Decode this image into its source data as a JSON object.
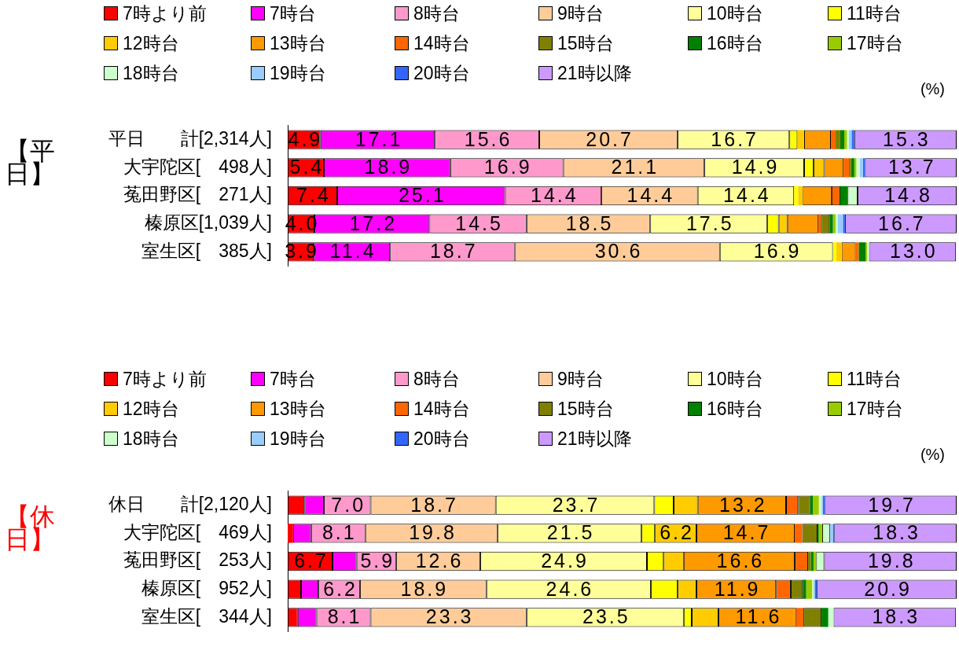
{
  "chart_data": [
    {
      "type": "bar",
      "title": "【平日】",
      "xlabel": "(%)",
      "orientation": "horizontal",
      "stacked": true,
      "legend": "top",
      "tick_labels": "y",
      "xlim": [
        0,
        100
      ],
      "categories": [
        "平日　　計[2,314人]",
        "大宇陀区[　498人]",
        "菟田野区[　271人]",
        "榛原区[1,039人]",
        "室生区[　385人]"
      ],
      "series": [
        {
          "name": "7時より前",
          "color": "#ff0000",
          "values": [
            4.9,
            5.4,
            7.4,
            4.0,
            3.9
          ],
          "value_labels": [
            "4.9",
            "5.4",
            "7.4",
            "4.0",
            "3.9"
          ]
        },
        {
          "name": "7時台",
          "color": "#ff00ff",
          "values": [
            17.1,
            18.9,
            25.1,
            17.2,
            11.4
          ],
          "value_labels": [
            "17.1",
            "18.9",
            "25.1",
            "17.2",
            "11.4"
          ]
        },
        {
          "name": "8時台",
          "color": "#ff99cc",
          "values": [
            15.6,
            16.9,
            14.4,
            14.5,
            18.7
          ],
          "value_labels": [
            "15.6",
            "16.9",
            "14.4",
            "14.5",
            "18.7"
          ]
        },
        {
          "name": "9時台",
          "color": "#ffcc99",
          "values": [
            20.7,
            21.1,
            14.4,
            18.5,
            30.6
          ],
          "value_labels": [
            "20.7",
            "21.1",
            "14.4",
            "18.5",
            "30.6"
          ]
        },
        {
          "name": "10時台",
          "color": "#ffff99",
          "values": [
            16.7,
            14.9,
            14.4,
            17.5,
            16.9
          ],
          "value_labels": [
            "16.7",
            "14.9",
            "14.4",
            "17.5",
            "16.9"
          ]
        },
        {
          "name": "11時台",
          "color": "#ffff00",
          "values": [
            1.2,
            1.4,
            0.6,
            1.7,
            0.5
          ]
        },
        {
          "name": "12時台",
          "color": "#ffcc00",
          "values": [
            1.0,
            1.6,
            0.7,
            1.3,
            0.8
          ]
        },
        {
          "name": "13時台",
          "color": "#ff9900",
          "values": [
            4.0,
            2.9,
            4.3,
            4.6,
            2.1
          ]
        },
        {
          "name": "14時台",
          "color": "#ff6600",
          "values": [
            0.7,
            0.8,
            1.3,
            0.4,
            0.4
          ]
        },
        {
          "name": "15時台",
          "color": "#808000",
          "values": [
            0.7,
            0.3,
            0,
            1.3,
            0.1
          ]
        },
        {
          "name": "16時台",
          "color": "#008000",
          "values": [
            0.6,
            0.5,
            1.1,
            0.5,
            1.0
          ]
        },
        {
          "name": "17時台",
          "color": "#99cc00",
          "values": [
            0.4,
            0.3,
            0,
            0.4,
            0.2
          ]
        },
        {
          "name": "18時台",
          "color": "#ccffcc",
          "values": [
            0.3,
            0.5,
            1.5,
            0.3,
            0.3
          ]
        },
        {
          "name": "19時台",
          "color": "#99ccff",
          "values": [
            0.4,
            0.5,
            0,
            0.8,
            null
          ]
        },
        {
          "name": "20時台",
          "color": "#3366ff",
          "values": [
            0.4,
            0.3,
            0,
            0.3,
            0
          ]
        },
        {
          "name": "21時以降",
          "color": "#cc99ff",
          "values": [
            15.3,
            13.7,
            14.8,
            16.7,
            13.0
          ],
          "value_labels": [
            "15.3",
            "13.7",
            "14.8",
            "16.7",
            "13.0"
          ]
        }
      ]
    },
    {
      "type": "bar",
      "title": "【休日】",
      "xlabel": "(%)",
      "orientation": "horizontal",
      "stacked": true,
      "legend": "top",
      "tick_labels": "y",
      "xlim": [
        0,
        100
      ],
      "categories": [
        "休日　　計[2,120人]",
        "大宇陀区[　469人]",
        "菟田野区[　253人]",
        "榛原区[　952人]",
        "室生区[　344人]"
      ],
      "series": [
        {
          "name": "7時より前",
          "color": "#ff0000",
          "values": [
            2.5,
            0.8,
            6.7,
            2.0,
            1.5
          ],
          "value_labels": [
            null,
            null,
            "6.7",
            null,
            null
          ]
        },
        {
          "name": "7時台",
          "color": "#ff00ff",
          "values": [
            2.9,
            2.7,
            3.6,
            2.6,
            2.8
          ]
        },
        {
          "name": "8時台",
          "color": "#ff99cc",
          "values": [
            7.0,
            8.1,
            5.9,
            6.2,
            8.1
          ],
          "value_labels": [
            "7.0",
            "8.1",
            "5.9",
            "6.2",
            "8.1"
          ]
        },
        {
          "name": "9時台",
          "color": "#ffcc99",
          "values": [
            18.7,
            19.8,
            12.6,
            18.9,
            23.3
          ],
          "value_labels": [
            "18.7",
            "19.8",
            "12.6",
            "18.9",
            "23.3"
          ]
        },
        {
          "name": "10時台",
          "color": "#ffff99",
          "values": [
            23.7,
            21.5,
            24.9,
            24.6,
            23.5
          ],
          "value_labels": [
            "23.7",
            "21.5",
            "24.9",
            "24.6",
            "23.5"
          ]
        },
        {
          "name": "11時台",
          "color": "#ffff00",
          "values": [
            2.9,
            2.0,
            2.5,
            4.0,
            1.2
          ]
        },
        {
          "name": "12時台",
          "color": "#ffcc00",
          "values": [
            3.6,
            6.2,
            3.0,
            2.8,
            4.0
          ],
          "value_labels": [
            null,
            "6.2",
            null,
            null,
            null
          ]
        },
        {
          "name": "13時台",
          "color": "#ff9900",
          "values": [
            13.2,
            14.7,
            16.6,
            11.9,
            11.6
          ],
          "value_labels": [
            "13.2",
            "14.7",
            "16.6",
            "11.9",
            "11.6"
          ]
        },
        {
          "name": "14時台",
          "color": "#ff6600",
          "values": [
            1.8,
            1.1,
            2.0,
            2.2,
            1.1
          ]
        },
        {
          "name": "15時台",
          "color": "#808000",
          "values": [
            1.8,
            2.3,
            0.4,
            1.8,
            2.7
          ]
        },
        {
          "name": "16時台",
          "color": "#008000",
          "values": [
            0.4,
            0.2,
            0.4,
            0.5,
            1.0
          ]
        },
        {
          "name": "17時台",
          "color": "#99cc00",
          "values": [
            0.9,
            0.5,
            0.4,
            0.9,
            null
          ]
        },
        {
          "name": "18時台",
          "color": "#ccffcc",
          "values": [
            0.4,
            1.2,
            1.2,
            0.2,
            0.8
          ]
        },
        {
          "name": "19時台",
          "color": "#99ccff",
          "values": [
            0.2,
            0.4,
            0,
            0.2,
            0
          ]
        },
        {
          "name": "20時台",
          "color": "#3366ff",
          "values": [
            0.3,
            0.2,
            0,
            0.3,
            0
          ]
        },
        {
          "name": "21時以降",
          "color": "#cc99ff",
          "values": [
            19.7,
            18.3,
            19.8,
            20.9,
            18.3
          ],
          "value_labels": [
            "19.7",
            "18.3",
            "19.8",
            "20.9",
            "18.3"
          ]
        }
      ]
    }
  ]
}
